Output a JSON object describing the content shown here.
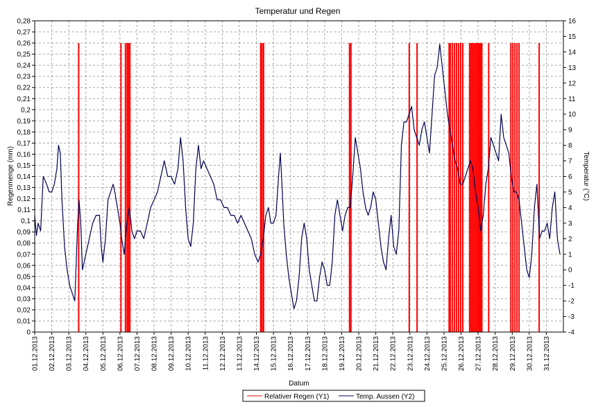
{
  "chart_data": {
    "type": "line",
    "title": "Temperatur und Regen",
    "xlabel": "Datum",
    "ylabel_left": "Regenmenge (mm)",
    "ylabel_right": "Temperatur (°C)",
    "ylim_left": [
      0,
      0.28
    ],
    "ylim_right": [
      -4,
      16
    ],
    "grid": true,
    "legend_position": "bottom-center",
    "x_tick_labels": [
      "01.12.2013",
      "02.12.2013",
      "03.12.2013",
      "04.12.2013",
      "05.12.2013",
      "06.12.2013",
      "07.12.2013",
      "08.12.2013",
      "09.12.2013",
      "10.12.2013",
      "11.12.2013",
      "12.12.2013",
      "13.12.2013",
      "14.12.2013",
      "15.12.2013",
      "16.12.2013",
      "17.12.2013",
      "18.12.2013",
      "19.12.2013",
      "20.12.2013",
      "21.12.2013",
      "22.12.2013",
      "23.12.2013",
      "24.12.2013",
      "25.12.2013",
      "26.12.2013",
      "27.12.2013",
      "28.12.2013",
      "29.12.2013",
      "30.12.2013",
      "31.12.2013"
    ],
    "y_left_ticks": [
      "0",
      "0,01",
      "0,02",
      "0,03",
      "0,04",
      "0,05",
      "0,06",
      "0,07",
      "0,08",
      "0,09",
      "0,1",
      "0,11",
      "0,12",
      "0,13",
      "0,14",
      "0,15",
      "0,16",
      "0,17",
      "0,18",
      "0,19",
      "0,2",
      "0,21",
      "0,22",
      "0,23",
      "0,24",
      "0,25",
      "0,26",
      "0,27",
      "0,28"
    ],
    "y_right_ticks": [
      "-4",
      "-3",
      "-2",
      "-1",
      "0",
      "1",
      "2",
      "3",
      "4",
      "5",
      "6",
      "7",
      "8",
      "9",
      "10",
      "11",
      "12",
      "13",
      "14",
      "15",
      "16"
    ],
    "series": [
      {
        "name": "Relativer Regen (Y1)",
        "color": "#ff0000",
        "axis": "left",
        "type": "bar",
        "value": 0.26,
        "x_days": [
          3.58,
          6.06,
          6.32,
          6.42,
          6.5,
          6.58,
          14.25,
          14.33,
          14.42,
          19.46,
          19.54,
          22.96,
          23.42,
          25.3,
          25.38,
          25.5,
          25.62,
          25.74,
          25.86,
          25.98,
          26.1,
          26.5,
          26.58,
          26.66,
          26.74,
          26.82,
          26.9,
          26.98,
          27.06,
          27.14,
          27.22,
          27.62,
          28.92,
          29.04,
          29.16,
          29.28,
          29.4,
          30.58
        ]
      },
      {
        "name": "Temp. Aussen (Y2)",
        "color": "#000050",
        "axis": "right",
        "type": "line",
        "points": [
          [
            1.0,
            3.5
          ],
          [
            1.1,
            2.2
          ],
          [
            1.2,
            3.0
          ],
          [
            1.35,
            2.5
          ],
          [
            1.5,
            6.0
          ],
          [
            1.7,
            5.5
          ],
          [
            1.85,
            5.0
          ],
          [
            2.0,
            5.0
          ],
          [
            2.15,
            5.5
          ],
          [
            2.3,
            6.5
          ],
          [
            2.4,
            8.0
          ],
          [
            2.5,
            7.5
          ],
          [
            2.6,
            4.5
          ],
          [
            2.75,
            1.5
          ],
          [
            2.9,
            0.0
          ],
          [
            3.05,
            -1.0
          ],
          [
            3.2,
            -1.5
          ],
          [
            3.35,
            -2.0
          ],
          [
            3.5,
            2.5
          ],
          [
            3.6,
            4.5
          ],
          [
            3.7,
            3.0
          ],
          [
            3.8,
            0.0
          ],
          [
            3.9,
            0.5
          ],
          [
            4.0,
            1.0
          ],
          [
            4.2,
            2.0
          ],
          [
            4.4,
            3.0
          ],
          [
            4.6,
            3.5
          ],
          [
            4.8,
            3.5
          ],
          [
            4.9,
            1.5
          ],
          [
            5.0,
            0.5
          ],
          [
            5.15,
            2.0
          ],
          [
            5.3,
            4.5
          ],
          [
            5.45,
            5.0
          ],
          [
            5.6,
            5.5
          ],
          [
            5.7,
            5.0
          ],
          [
            5.85,
            4.0
          ],
          [
            6.0,
            3.0
          ],
          [
            6.1,
            2.0
          ],
          [
            6.25,
            1.0
          ],
          [
            6.4,
            3.0
          ],
          [
            6.55,
            4.0
          ],
          [
            6.7,
            2.5
          ],
          [
            6.85,
            2.0
          ],
          [
            7.0,
            2.5
          ],
          [
            7.2,
            2.5
          ],
          [
            7.4,
            2.0
          ],
          [
            7.6,
            3.0
          ],
          [
            7.8,
            4.0
          ],
          [
            8.0,
            4.5
          ],
          [
            8.2,
            5.0
          ],
          [
            8.4,
            6.0
          ],
          [
            8.6,
            7.0
          ],
          [
            8.8,
            6.0
          ],
          [
            9.0,
            6.0
          ],
          [
            9.2,
            5.5
          ],
          [
            9.4,
            6.5
          ],
          [
            9.55,
            8.5
          ],
          [
            9.7,
            7.0
          ],
          [
            9.85,
            4.0
          ],
          [
            10.0,
            2.0
          ],
          [
            10.15,
            1.5
          ],
          [
            10.3,
            3.0
          ],
          [
            10.45,
            6.5
          ],
          [
            10.6,
            8.0
          ],
          [
            10.75,
            6.5
          ],
          [
            10.9,
            7.0
          ],
          [
            11.1,
            6.5
          ],
          [
            11.3,
            6.0
          ],
          [
            11.5,
            5.5
          ],
          [
            11.7,
            4.5
          ],
          [
            11.9,
            4.5
          ],
          [
            12.1,
            4.0
          ],
          [
            12.3,
            4.0
          ],
          [
            12.5,
            3.5
          ],
          [
            12.7,
            3.5
          ],
          [
            12.9,
            3.0
          ],
          [
            13.1,
            3.5
          ],
          [
            13.3,
            3.0
          ],
          [
            13.5,
            2.5
          ],
          [
            13.7,
            2.0
          ],
          [
            13.9,
            1.0
          ],
          [
            14.1,
            0.5
          ],
          [
            14.25,
            1.0
          ],
          [
            14.4,
            2.0
          ],
          [
            14.55,
            3.5
          ],
          [
            14.7,
            4.0
          ],
          [
            14.85,
            3.0
          ],
          [
            15.0,
            3.0
          ],
          [
            15.15,
            3.5
          ],
          [
            15.3,
            6.0
          ],
          [
            15.4,
            7.5
          ],
          [
            15.5,
            5.5
          ],
          [
            15.6,
            3.0
          ],
          [
            15.75,
            1.0
          ],
          [
            15.9,
            -0.5
          ],
          [
            16.05,
            -1.5
          ],
          [
            16.2,
            -2.5
          ],
          [
            16.35,
            -2.0
          ],
          [
            16.5,
            -0.5
          ],
          [
            16.65,
            2.0
          ],
          [
            16.8,
            3.0
          ],
          [
            16.95,
            2.0
          ],
          [
            17.1,
            0.0
          ],
          [
            17.25,
            -1.0
          ],
          [
            17.4,
            -2.0
          ],
          [
            17.55,
            -2.0
          ],
          [
            17.7,
            -0.5
          ],
          [
            17.85,
            0.5
          ],
          [
            18.0,
            0.0
          ],
          [
            18.15,
            -1.0
          ],
          [
            18.3,
            -1.0
          ],
          [
            18.45,
            0.5
          ],
          [
            18.6,
            3.5
          ],
          [
            18.75,
            4.5
          ],
          [
            18.9,
            3.5
          ],
          [
            19.05,
            2.5
          ],
          [
            19.2,
            3.5
          ],
          [
            19.35,
            4.0
          ],
          [
            19.5,
            4.0
          ],
          [
            19.65,
            6.0
          ],
          [
            19.8,
            8.5
          ],
          [
            19.95,
            7.5
          ],
          [
            20.1,
            6.5
          ],
          [
            20.25,
            5.0
          ],
          [
            20.4,
            4.0
          ],
          [
            20.55,
            3.5
          ],
          [
            20.7,
            4.0
          ],
          [
            20.85,
            5.0
          ],
          [
            21.0,
            4.5
          ],
          [
            21.15,
            3.0
          ],
          [
            21.3,
            1.5
          ],
          [
            21.45,
            0.5
          ],
          [
            21.6,
            0.0
          ],
          [
            21.75,
            2.0
          ],
          [
            21.9,
            3.5
          ],
          [
            22.05,
            1.5
          ],
          [
            22.2,
            1.0
          ],
          [
            22.35,
            2.5
          ],
          [
            22.5,
            8.0
          ],
          [
            22.65,
            9.5
          ],
          [
            22.8,
            9.5
          ],
          [
            22.95,
            10.0
          ],
          [
            23.1,
            10.5
          ],
          [
            23.25,
            9.0
          ],
          [
            23.4,
            8.5
          ],
          [
            23.55,
            8.0
          ],
          [
            23.7,
            9.0
          ],
          [
            23.85,
            9.5
          ],
          [
            24.0,
            8.5
          ],
          [
            24.15,
            7.5
          ],
          [
            24.3,
            10.0
          ],
          [
            24.45,
            12.5
          ],
          [
            24.6,
            13.0
          ],
          [
            24.75,
            14.5
          ],
          [
            24.9,
            13.0
          ],
          [
            25.05,
            11.5
          ],
          [
            25.2,
            10.0
          ],
          [
            25.35,
            9.0
          ],
          [
            25.5,
            8.0
          ],
          [
            25.65,
            7.0
          ],
          [
            25.8,
            6.5
          ],
          [
            25.95,
            5.5
          ],
          [
            26.1,
            5.5
          ],
          [
            26.25,
            6.0
          ],
          [
            26.4,
            6.5
          ],
          [
            26.55,
            7.0
          ],
          [
            26.7,
            6.5
          ],
          [
            26.85,
            5.0
          ],
          [
            27.0,
            4.0
          ],
          [
            27.15,
            2.5
          ],
          [
            27.3,
            3.5
          ],
          [
            27.45,
            5.5
          ],
          [
            27.6,
            6.5
          ],
          [
            27.75,
            8.5
          ],
          [
            27.9,
            8.0
          ],
          [
            28.05,
            7.5
          ],
          [
            28.2,
            7.0
          ],
          [
            28.35,
            10.0
          ],
          [
            28.5,
            8.5
          ],
          [
            28.65,
            8.0
          ],
          [
            28.8,
            7.5
          ],
          [
            28.95,
            6.0
          ],
          [
            29.1,
            5.0
          ],
          [
            29.25,
            5.0
          ],
          [
            29.4,
            4.5
          ],
          [
            29.55,
            3.0
          ],
          [
            29.7,
            1.5
          ],
          [
            29.85,
            0.0
          ],
          [
            30.0,
            -0.5
          ],
          [
            30.15,
            1.0
          ],
          [
            30.3,
            4.0
          ],
          [
            30.45,
            5.5
          ],
          [
            30.6,
            2.0
          ],
          [
            30.75,
            2.5
          ],
          [
            30.9,
            2.5
          ],
          [
            31.05,
            3.0
          ],
          [
            31.2,
            2.0
          ],
          [
            31.35,
            4.0
          ],
          [
            31.5,
            5.0
          ],
          [
            31.65,
            2.0
          ],
          [
            31.8,
            1.0
          ]
        ]
      }
    ]
  }
}
